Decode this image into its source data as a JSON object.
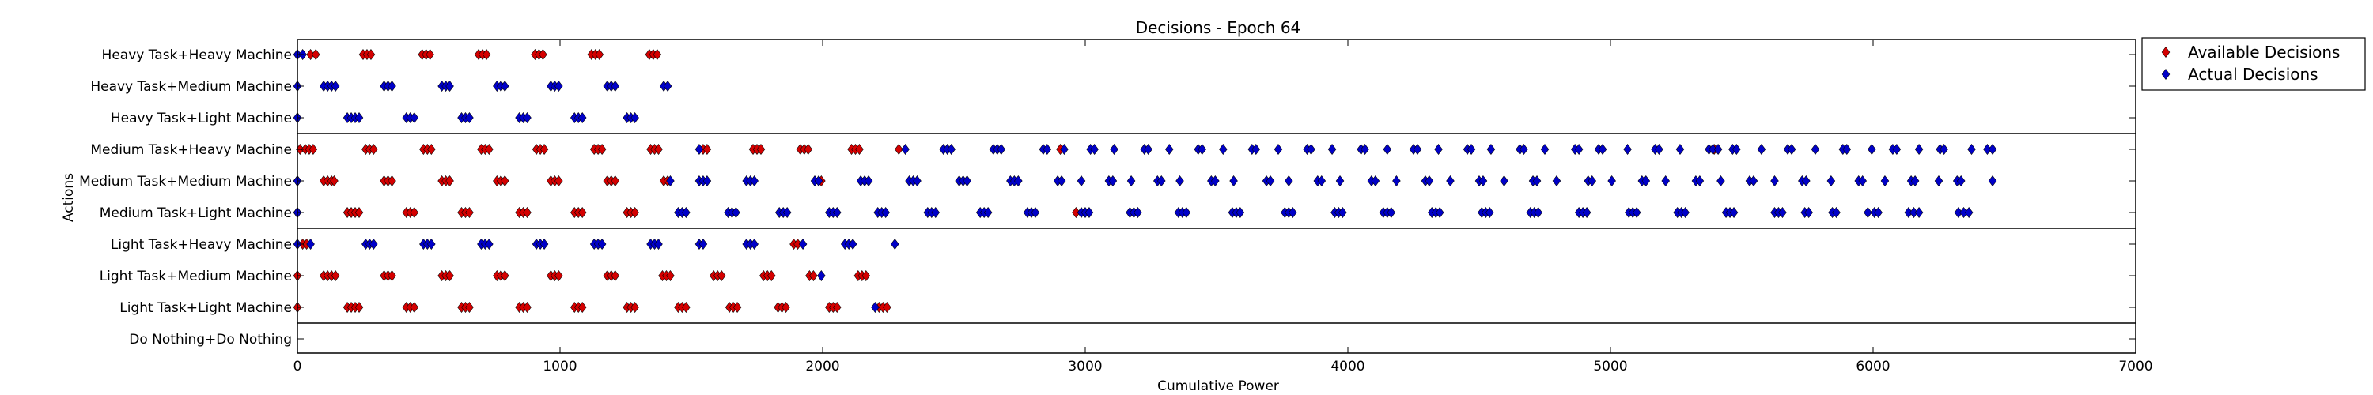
{
  "chart_data": {
    "type": "scatter",
    "title": "Decisions - Epoch 64",
    "xlabel": "Cumulative Power",
    "ylabel": "Actions",
    "xlim": [
      0,
      7000
    ],
    "xticks": [
      0,
      1000,
      2000,
      3000,
      4000,
      5000,
      6000,
      7000
    ],
    "categories": [
      "Heavy Task+Heavy Machine",
      "Heavy Task+Medium Machine",
      "Heavy Task+Light Machine",
      "Medium Task+Heavy Machine",
      "Medium Task+Medium Machine",
      "Medium Task+Light Machine",
      "Light Task+Heavy Machine",
      "Light Task+Medium Machine",
      "Light Task+Light Machine",
      "Do Nothing+Do Nothing"
    ],
    "group_separators_after": [
      "Heavy Task+Light Machine",
      "Medium Task+Light Machine",
      "Light Task+Light Machine"
    ],
    "legend_position": "outside-right",
    "colors": {
      "available": "#d40000",
      "actual": "#0000c8"
    },
    "series": [
      {
        "name": "Available Decisions",
        "color": "#d40000",
        "points": {
          "Heavy Task+Heavy Machine": [
            50,
            70,
            250,
            265,
            280,
            475,
            490,
            505,
            690,
            705,
            720,
            905,
            920,
            935,
            1120,
            1135,
            1150,
            1340,
            1355,
            1370
          ],
          "Medium Task+Heavy Machine": [
            10,
            30,
            45,
            60,
            260,
            275,
            290,
            480,
            495,
            510,
            700,
            715,
            730,
            910,
            925,
            940,
            1130,
            1145,
            1160,
            1345,
            1360,
            1375,
            1545,
            1560,
            1735,
            1750,
            1765,
            1915,
            1930,
            1945,
            2110,
            2125,
            2140,
            2290,
            2905,
            5395
          ],
          "Medium Task+Medium Machine": [
            0,
            100,
            115,
            130,
            140,
            330,
            345,
            360,
            550,
            565,
            580,
            760,
            775,
            790,
            965,
            980,
            995,
            1180,
            1195,
            1210,
            1395,
            1410,
            1995
          ],
          "Medium Task+Light Machine": [
            0,
            190,
            205,
            220,
            235,
            415,
            430,
            445,
            625,
            640,
            655,
            845,
            860,
            875,
            1055,
            1070,
            1085,
            1255,
            1270,
            1285,
            2965
          ],
          "Light Task+Heavy Machine": [
            20,
            35,
            1890,
            1905
          ],
          "Light Task+Medium Machine": [
            0,
            100,
            115,
            130,
            145,
            330,
            345,
            360,
            550,
            565,
            580,
            760,
            775,
            790,
            965,
            980,
            995,
            1180,
            1195,
            1210,
            1390,
            1405,
            1420,
            1585,
            1600,
            1615,
            1775,
            1790,
            1805,
            1950,
            1965,
            2135,
            2150,
            2165
          ],
          "Light Task+Light Machine": [
            0,
            190,
            205,
            220,
            235,
            415,
            430,
            445,
            625,
            640,
            655,
            845,
            860,
            875,
            1055,
            1070,
            1085,
            1255,
            1270,
            1285,
            1450,
            1465,
            1480,
            1645,
            1660,
            1675,
            1830,
            1845,
            1860,
            2025,
            2040,
            2055,
            2215,
            2230,
            2245
          ]
        }
      },
      {
        "name": "Actual Decisions",
        "color": "#0000c8",
        "points": {
          "Heavy Task+Heavy Machine": [
            0,
            20
          ],
          "Heavy Task+Medium Machine": [
            0,
            100,
            115,
            130,
            145,
            330,
            345,
            360,
            550,
            565,
            580,
            760,
            775,
            790,
            965,
            980,
            995,
            1180,
            1195,
            1210,
            1395,
            1410
          ],
          "Heavy Task+Light Machine": [
            0,
            190,
            205,
            220,
            235,
            415,
            430,
            445,
            625,
            640,
            655,
            845,
            860,
            875,
            1055,
            1070,
            1085,
            1255,
            1270,
            1285
          ],
          "Medium Task+Heavy Machine": [
            1530,
            2315,
            2460,
            2475,
            2490,
            2650,
            2665,
            2680,
            2840,
            2855,
            2920,
            3020,
            3035,
            3110,
            3225,
            3240,
            3320,
            3430,
            3445,
            3525,
            3635,
            3650,
            3735,
            3845,
            3860,
            3940,
            4050,
            4065,
            4150,
            4250,
            4265,
            4345,
            4455,
            4470,
            4545,
            4655,
            4670,
            4750,
            4865,
            4880,
            4955,
            4970,
            5065,
            5170,
            5185,
            5265,
            5375,
            5390,
            5410,
            5465,
            5480,
            5575,
            5675,
            5690,
            5780,
            5885,
            5900,
            5995,
            6075,
            6090,
            6175,
            6255,
            6270,
            6375,
            6435,
            6455
          ],
          "Medium Task+Medium Machine": [
            0,
            1420,
            1530,
            1545,
            1560,
            1710,
            1725,
            1740,
            1970,
            1985,
            2145,
            2160,
            2175,
            2330,
            2345,
            2360,
            2520,
            2535,
            2550,
            2715,
            2730,
            2745,
            2895,
            2910,
            2985,
            3090,
            3105,
            3175,
            3275,
            3290,
            3360,
            3480,
            3495,
            3565,
            3690,
            3705,
            3775,
            3885,
            3900,
            3970,
            4090,
            4105,
            4185,
            4295,
            4310,
            4390,
            4500,
            4515,
            4595,
            4705,
            4720,
            4795,
            4915,
            4930,
            5005,
            5120,
            5135,
            5210,
            5325,
            5340,
            5420,
            5530,
            5545,
            5625,
            5730,
            5745,
            5840,
            5945,
            5960,
            6045,
            6145,
            6160,
            6250,
            6320,
            6335,
            6455
          ],
          "Medium Task+Light Machine": [
            0,
            1450,
            1465,
            1480,
            1640,
            1655,
            1670,
            1835,
            1850,
            1865,
            2025,
            2040,
            2055,
            2210,
            2225,
            2240,
            2400,
            2415,
            2430,
            2600,
            2615,
            2630,
            2780,
            2795,
            2810,
            2985,
            3000,
            3015,
            3170,
            3185,
            3200,
            3355,
            3370,
            3385,
            3560,
            3575,
            3590,
            3760,
            3775,
            3790,
            3950,
            3965,
            3980,
            4135,
            4150,
            4165,
            4320,
            4335,
            4350,
            4510,
            4525,
            4540,
            4695,
            4710,
            4725,
            4880,
            4895,
            4910,
            5070,
            5085,
            5100,
            5255,
            5270,
            5285,
            5440,
            5455,
            5470,
            5625,
            5640,
            5655,
            5740,
            5755,
            5845,
            5860,
            5980,
            6005,
            6020,
            6135,
            6155,
            6175,
            6325,
            6345,
            6365
          ],
          "Light Task+Heavy Machine": [
            0,
            50,
            260,
            275,
            290,
            480,
            495,
            510,
            700,
            715,
            730,
            910,
            925,
            940,
            1130,
            1145,
            1160,
            1345,
            1360,
            1375,
            1530,
            1545,
            1710,
            1725,
            1740,
            1925,
            2085,
            2100,
            2115,
            2275
          ],
          "Light Task+Medium Machine": [
            1995
          ],
          "Light Task+Light Machine": [
            2200
          ]
        }
      }
    ]
  }
}
